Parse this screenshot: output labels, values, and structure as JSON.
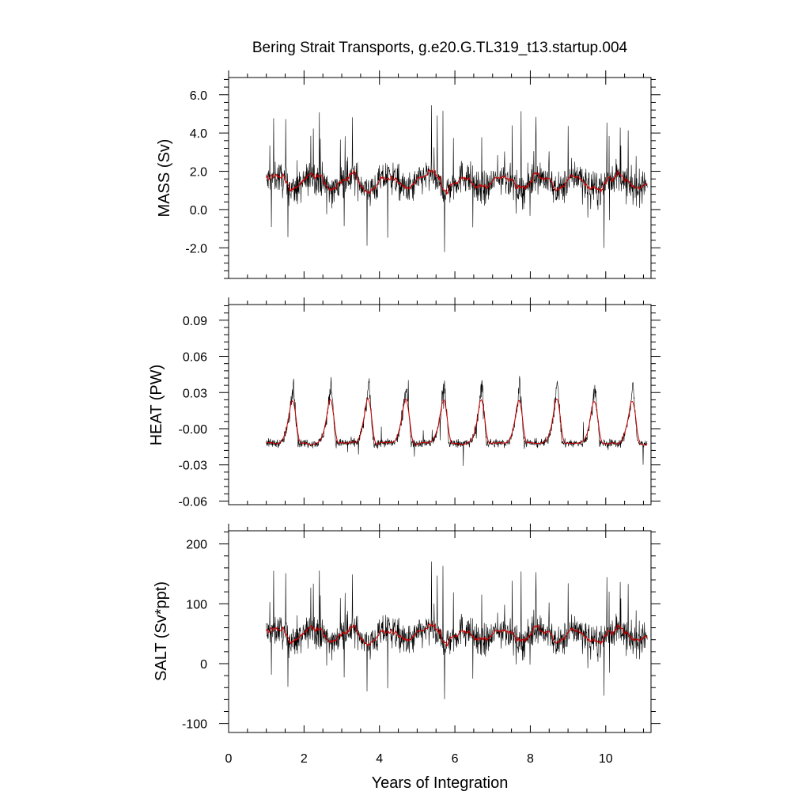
{
  "title": "Bering Strait Transports, g.e20.G.TL319_t13.startup.004",
  "xlabel": "Years of Integration",
  "colors": {
    "raw": "#000000",
    "smoothed": "#cc0000",
    "frame": "#000000",
    "background": "#ffffff"
  },
  "chart_data": [
    {
      "type": "line",
      "ylabel": "MASS (Sv)",
      "x_range": [
        0,
        11.2
      ],
      "ylim": [
        -3.6,
        6.9
      ],
      "x_ticks": [
        "0",
        "2",
        "4",
        "6",
        "8",
        "10"
      ],
      "y_ticks": [
        "6.0",
        "4.0",
        "2.0",
        "0.0",
        "-2.0"
      ],
      "y_tick_values": [
        6,
        4,
        2,
        0,
        -2
      ],
      "seasonal": {
        "start_year": 1.0,
        "end_year": 11.1,
        "mean": 1.4,
        "amplitude": 0.35,
        "noise": 0.85,
        "spike": 2.2
      },
      "series": [
        {
          "values": []
        }
      ]
    },
    {
      "type": "line",
      "ylabel": "HEAT (PW)",
      "x_range": [
        0,
        11.2
      ],
      "ylim": [
        -0.063,
        0.103
      ],
      "x_ticks": [
        "0",
        "2",
        "4",
        "6",
        "8",
        "10"
      ],
      "y_ticks": [
        "0.09",
        "0.06",
        "0.03",
        "-0.00",
        "-0.03",
        "-0.06"
      ],
      "y_tick_values": [
        0.09,
        0.06,
        0.03,
        0.0,
        -0.03,
        -0.06
      ],
      "seasonal": {
        "start_year": 1.0,
        "end_year": 11.1,
        "mean": 0.005,
        "amplitude": 0.05,
        "noise": 0.007,
        "spike": 0.02,
        "peak_phase": 0.72,
        "baseline": -0.012
      },
      "series": [
        {
          "values": []
        }
      ]
    },
    {
      "type": "line",
      "ylabel": "SALT (Sv*ppt)",
      "x_range": [
        0,
        11.2
      ],
      "ylim": [
        -115,
        222
      ],
      "x_ticks": [
        "0",
        "2",
        "4",
        "6",
        "8",
        "10"
      ],
      "y_ticks": [
        "200",
        "100",
        "0",
        "-100"
      ],
      "y_tick_values": [
        200,
        100,
        0,
        -100
      ],
      "seasonal": {
        "start_year": 1.0,
        "end_year": 11.1,
        "mean": 45,
        "amplitude": 12,
        "noise": 28,
        "spike": 70
      },
      "series": [
        {
          "values": []
        }
      ]
    }
  ]
}
